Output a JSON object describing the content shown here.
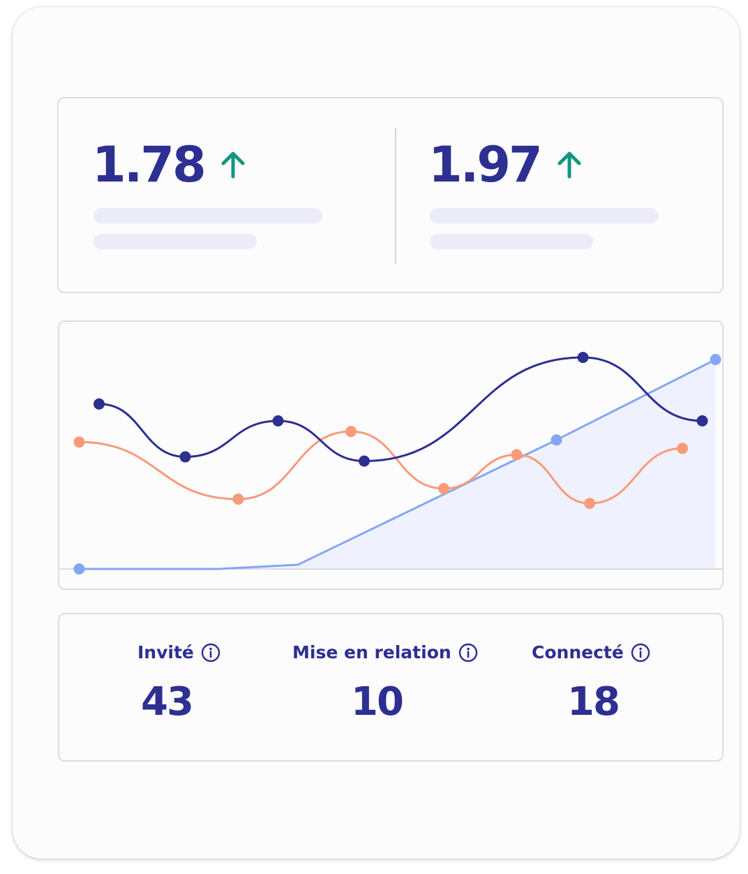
{
  "kpis": [
    {
      "value": "1.78",
      "trend": "up",
      "trend_icon": "arrow-up-icon"
    },
    {
      "value": "1.97",
      "trend": "up",
      "trend_icon": "arrow-up-icon"
    }
  ],
  "colors": {
    "primary": "#2d2f91",
    "success": "#13957f",
    "series_dark": "#2d2f91",
    "series_orange": "#f99a7a",
    "series_blue": "#84a6f4",
    "area_fill": "#eff2fe",
    "skeleton": "#ececf9",
    "border": "#dcdce6"
  },
  "stats": [
    {
      "label": "Invité",
      "value": "43",
      "icon": "info-icon"
    },
    {
      "label": "Mise en relation",
      "value": "10",
      "icon": "info-icon"
    },
    {
      "label": "Connecté",
      "value": "18",
      "icon": "info-icon"
    }
  ],
  "chart_data": {
    "type": "line",
    "grid": false,
    "xlim": [
      0,
      1
    ],
    "ylim": [
      0,
      1
    ],
    "series": [
      {
        "color": "#2d2f91",
        "smooth": true,
        "area": false,
        "points": [
          [
            0.06,
            0.78
          ],
          [
            0.19,
            0.53
          ],
          [
            0.33,
            0.7
          ],
          [
            0.46,
            0.51
          ],
          [
            0.79,
            1.0
          ],
          [
            0.97,
            0.7
          ]
        ]
      },
      {
        "color": "#f99a7a",
        "smooth": true,
        "area": false,
        "points": [
          [
            0.03,
            0.6
          ],
          [
            0.27,
            0.33
          ],
          [
            0.44,
            0.65
          ],
          [
            0.58,
            0.38
          ],
          [
            0.69,
            0.54
          ],
          [
            0.8,
            0.31
          ],
          [
            0.94,
            0.57
          ]
        ]
      },
      {
        "color": "#84a6f4",
        "smooth": false,
        "area": true,
        "points": [
          [
            0.03,
            0.0
          ],
          [
            0.24,
            0.0
          ],
          [
            0.36,
            0.02
          ],
          [
            0.75,
            0.61
          ],
          [
            0.99,
            0.99
          ]
        ]
      }
    ]
  }
}
